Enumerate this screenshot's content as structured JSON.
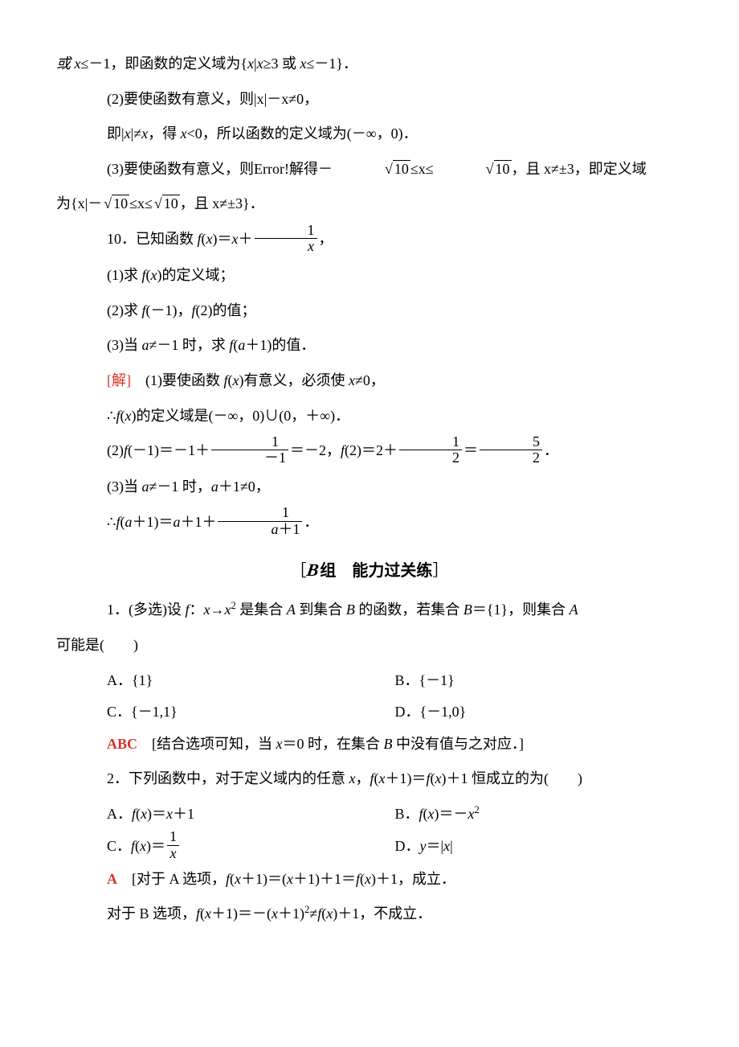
{
  "colors": {
    "text": "#000000",
    "background": "#ffffff",
    "accent_red": "#d8322b"
  },
  "typography": {
    "body_fontsize_pt": 14,
    "line_height": 2.2,
    "font_family": "Times New Roman / SimSun"
  },
  "top_lines": {
    "l1": "或 x≤－1，即函数的定义域为{x|x≥3 或 x≤－1}．",
    "l2": "(2)要使函数有意义，则|x|－x≠0，",
    "l3": "即|x|≠x，得 x<0，所以函数的定义域为(－∞，0)．",
    "l4a": "(3)要使函数有意义，则Error!解得－",
    "l4_sqrt": "10",
    "l4b": "≤x≤",
    "l4c": "，且 x≠±3，即定义域",
    "l5a": "为{x|－",
    "l5b": "≤x≤",
    "l5c": "，且 x≠±3}．"
  },
  "q10": {
    "stem_a": "10．已知函数 f(x)＝x＋",
    "frac_num": "1",
    "frac_den": "x",
    "stem_b": "，",
    "p1": "(1)求 f(x)的定义域；",
    "p2": "(2)求 f(－1)，f(2)的值；",
    "p3": "(3)当 a≠－1 时，求 f(a＋1)的值．",
    "sol_label": "[解]",
    "sol1": "(1)要使函数 f(x)有意义，必须使 x≠0，",
    "sol1b": "∴f(x)的定义域是(－∞，0)∪(0，＋∞)．",
    "sol2a": "(2)f(－1)＝－1＋",
    "sol2_frac1_num": "1",
    "sol2_frac1_den": "－1",
    "sol2b": "＝－2，f(2)＝2＋",
    "sol2_frac2_num": "1",
    "sol2_frac2_den": "2",
    "sol2c": "＝",
    "sol2_frac3_num": "5",
    "sol2_frac3_den": "2",
    "sol2d": "．",
    "sol3": "(3)当 a≠－1 时，a＋1≠0，",
    "sol3b_a": "∴f(a＋1)＝a＋1＋",
    "sol3b_num": "1",
    "sol3b_den": "a＋1",
    "sol3b_b": "．"
  },
  "section": {
    "bracket_l": "［",
    "letter": "B",
    "label": "组　能力过关练",
    "bracket_r": "］"
  },
  "q1": {
    "stem": "1．(多选)设 f：x→x² 是集合 A 到集合 B 的函数，若集合 B＝{1}，则集合 A",
    "stem2": "可能是(　　)",
    "optA": "A．{1}",
    "optB": "B．{－1}",
    "optC": "C．{－1,1}",
    "optD": "D．{－1,0}",
    "ans": "ABC",
    "expl": "[结合选项可知，当 x＝0 时，在集合 B 中没有值与之对应．]"
  },
  "q2": {
    "stem": "2．下列函数中，对于定义域内的任意 x，f(x＋1)＝f(x)＋1 恒成立的为(　　)",
    "optA": "A．f(x)＝x＋1",
    "optB": "B．f(x)＝－x²",
    "optC_a": "C．f(x)＝",
    "optC_num": "1",
    "optC_den": "x",
    "optD": "D．y＝|x|",
    "ans": "A",
    "explA": "[对于 A 选项，f(x＋1)＝(x＋1)＋1＝f(x)＋1，成立．",
    "explB": "对于 B 选项，f(x＋1)＝－(x＋1)²≠f(x)＋1，不成立．"
  }
}
